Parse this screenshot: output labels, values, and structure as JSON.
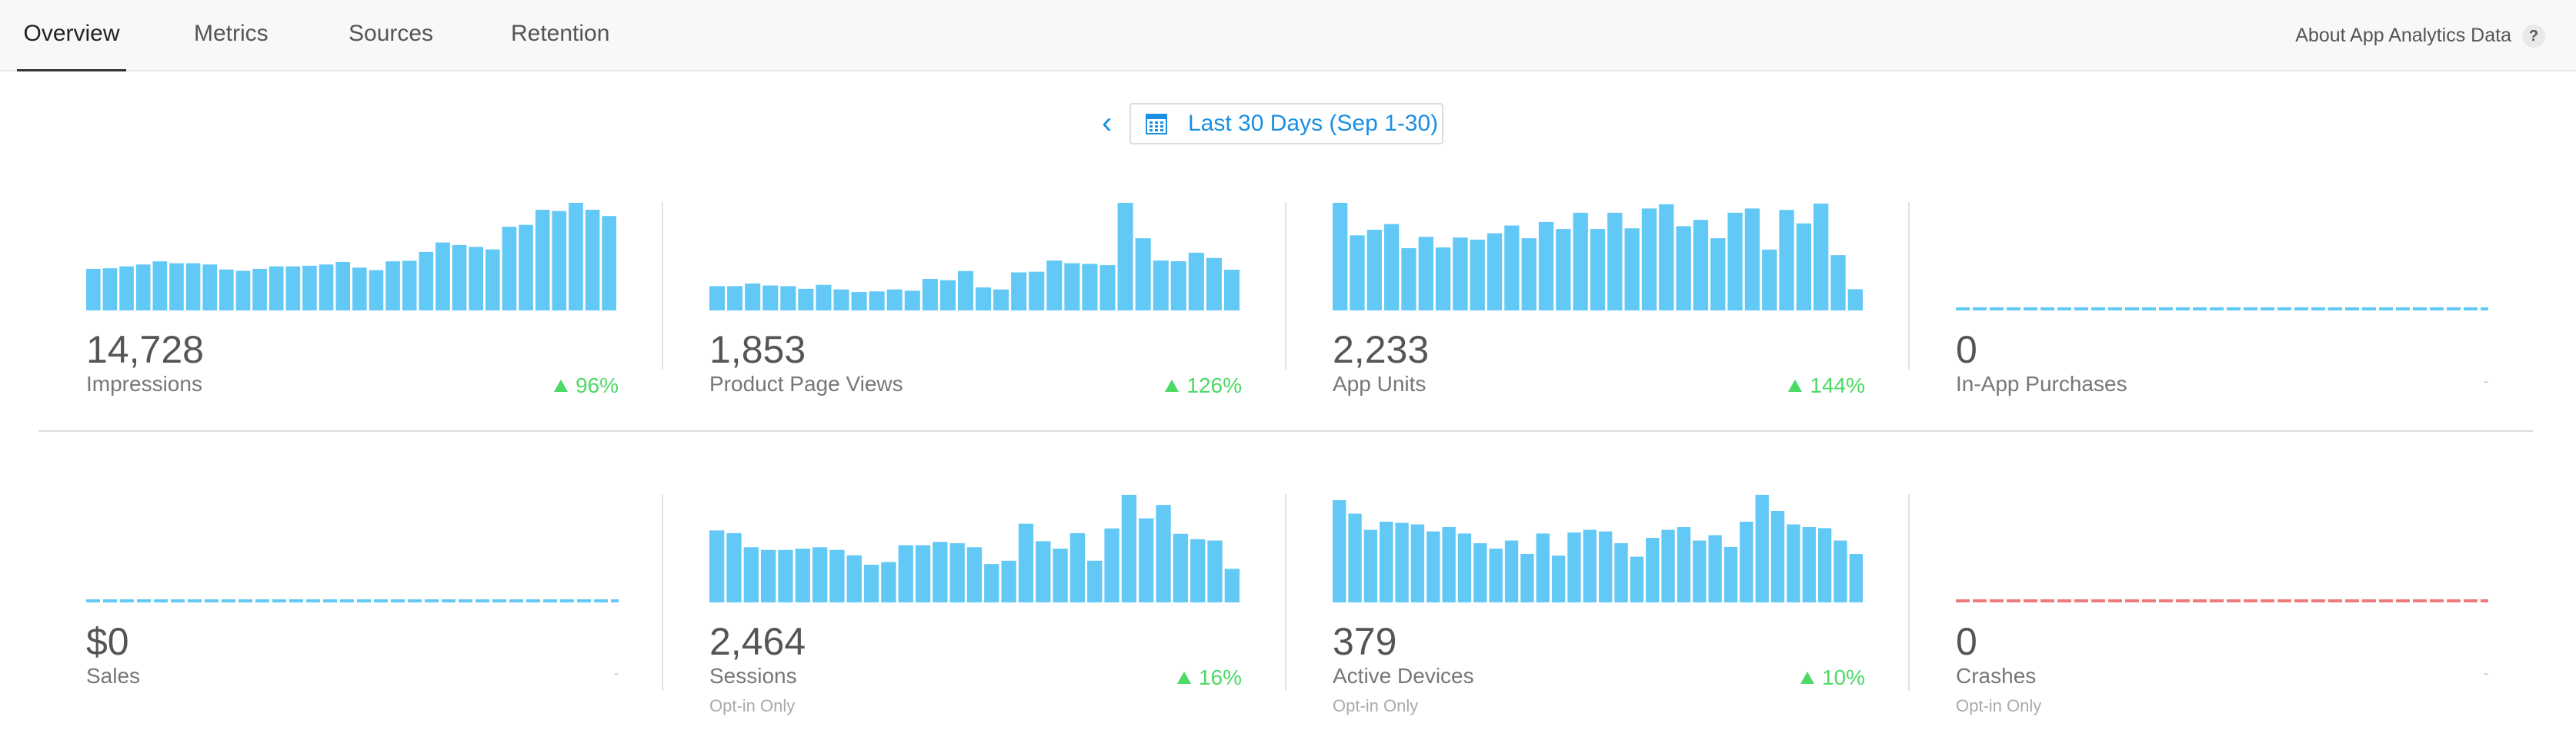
{
  "nav": {
    "tabs": [
      {
        "label": "Overview",
        "active": true
      },
      {
        "label": "Metrics",
        "active": false
      },
      {
        "label": "Sources",
        "active": false
      },
      {
        "label": "Retention",
        "active": false
      }
    ],
    "about_label": "About App Analytics Data",
    "help_glyph": "?"
  },
  "date_range": {
    "prev_glyph": "‹",
    "label": "Last 30 Days (Sep 1-30)"
  },
  "colors": {
    "bar": "#62c8f5",
    "accent": "#1a8fe3",
    "positive": "#4cd964",
    "crash_line": "#f07a7a"
  },
  "metrics": [
    {
      "value": "14,728",
      "label": "Impressions",
      "change": "96%",
      "note": "",
      "chart_type": "bar",
      "color": "#62c8f5",
      "values": [
        330,
        335,
        350,
        365,
        390,
        375,
        375,
        365,
        325,
        315,
        330,
        350,
        350,
        355,
        365,
        385,
        340,
        320,
        390,
        395,
        465,
        540,
        520,
        505,
        485,
        665,
        680,
        800,
        790,
        855,
        800,
        750
      ]
    },
    {
      "value": "1,853",
      "label": "Product Page Views",
      "change": "126%",
      "note": "",
      "chart_type": "bar",
      "color": "#62c8f5",
      "values": [
        185,
        185,
        205,
        190,
        185,
        165,
        195,
        160,
        140,
        145,
        160,
        150,
        240,
        230,
        300,
        175,
        160,
        290,
        295,
        380,
        360,
        355,
        345,
        820,
        550,
        380,
        375,
        440,
        400,
        310
      ]
    },
    {
      "value": "2,233",
      "label": "App Units",
      "change": "144%",
      "note": "",
      "chart_type": "bar",
      "color": "#62c8f5",
      "values": [
        760,
        530,
        570,
        610,
        440,
        520,
        445,
        515,
        500,
        545,
        600,
        510,
        625,
        575,
        690,
        575,
        690,
        580,
        720,
        750,
        595,
        640,
        510,
        690,
        720,
        430,
        710,
        615,
        755,
        390,
        150
      ]
    },
    {
      "value": "0",
      "label": "In-App Purchases",
      "change": "-",
      "note": "",
      "chart_type": "flat",
      "color": "#62c8f5",
      "values": []
    },
    {
      "value": "$0",
      "label": "Sales",
      "change": "-",
      "note": "",
      "chart_type": "flat",
      "color": "#62c8f5",
      "values": []
    },
    {
      "value": "2,464",
      "label": "Sessions",
      "change": "16%",
      "note": "Opt-in Only",
      "chart_type": "bar",
      "color": "#62c8f5",
      "values": [
        1070,
        1030,
        820,
        780,
        780,
        800,
        820,
        780,
        700,
        560,
        600,
        850,
        850,
        900,
        880,
        820,
        570,
        620,
        1170,
        910,
        800,
        1030,
        620,
        1100,
        1600,
        1250,
        1450,
        1020,
        940,
        920,
        500
      ]
    },
    {
      "value": "379",
      "label": "Active Devices",
      "change": "10%",
      "note": "Opt-in Only",
      "chart_type": "bar",
      "color": "#62c8f5",
      "values": [
        190,
        165,
        135,
        150,
        148,
        145,
        132,
        140,
        128,
        110,
        100,
        115,
        90,
        128,
        87,
        130,
        135,
        132,
        110,
        85,
        120,
        135,
        140,
        115,
        125,
        103,
        150,
        200,
        170,
        145,
        140,
        138,
        115,
        90
      ]
    },
    {
      "value": "0",
      "label": "Crashes",
      "change": "-",
      "note": "Opt-in Only",
      "chart_type": "flat",
      "color": "#f07a7a",
      "values": []
    }
  ]
}
